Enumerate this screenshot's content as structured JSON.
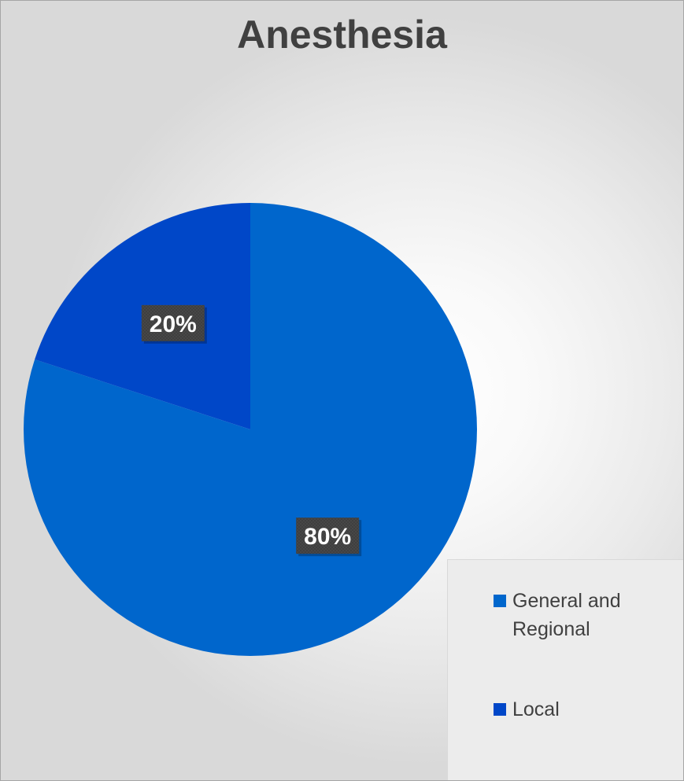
{
  "chart_data": {
    "type": "pie",
    "title": "Anesthesia",
    "slices": [
      {
        "label": "General and Regional",
        "value": 80,
        "data_label": "80%",
        "color": "#0066cc"
      },
      {
        "label": "Local",
        "value": 20,
        "data_label": "20%",
        "color": "#0047c8"
      }
    ],
    "legend_position": "bottom-right",
    "data_label_background": "#404040",
    "data_label_color": "#ffffff"
  }
}
